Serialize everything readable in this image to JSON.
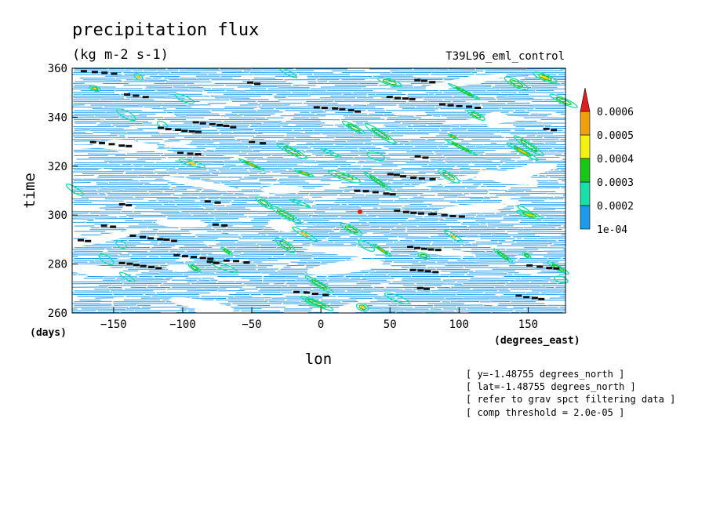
{
  "chart_data": {
    "type": "heatmap",
    "title": "precipitation flux",
    "units": "(kg m-2 s-1)",
    "experiment": "T39L96_eml_control",
    "xlabel": "lon",
    "xunits": "(degrees_east)",
    "ylabel": "time",
    "yunits": "(days)",
    "xlim": [
      -180,
      177
    ],
    "ylim": [
      260,
      360
    ],
    "xticks": [
      -150,
      -100,
      -50,
      0,
      50,
      100,
      150
    ],
    "yticks": [
      260,
      280,
      300,
      320,
      340,
      360
    ],
    "colorbar": {
      "levels": [
        "1e-04",
        "0.0002",
        "0.0003",
        "0.0004",
        "0.0005",
        "0.0006"
      ],
      "colors": [
        "#1e9be8",
        "#19e0a6",
        "#18c816",
        "#f2f20e",
        "#f0a00c",
        "#e31d1d"
      ],
      "extend": "max"
    },
    "notes": [
      "[ y=-1.48755 degrees_north ]",
      "[ lat=-1.48755 degrees_north ]",
      "[ refer to grav spct filtering data ]",
      "[ comp threshold = 2.0e-05 ]"
    ],
    "grid": false
  }
}
